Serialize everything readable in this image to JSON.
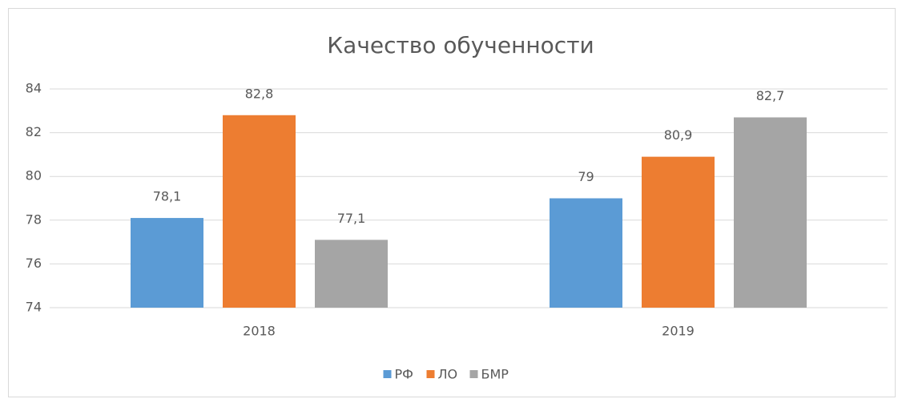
{
  "chart_data": {
    "type": "bar",
    "title": "Качество обученности",
    "categories": [
      "2018",
      "2019"
    ],
    "series": [
      {
        "name": "РФ",
        "color": "#5b9bd5",
        "values": [
          78.1,
          79
        ],
        "value_labels": [
          "78,1",
          "79"
        ]
      },
      {
        "name": "ЛО",
        "color": "#ed7d31",
        "values": [
          82.8,
          80.9
        ],
        "value_labels": [
          "82,8",
          "80,9"
        ]
      },
      {
        "name": "БМР",
        "color": "#a5a5a5",
        "values": [
          77.1,
          82.7
        ],
        "value_labels": [
          "77,1",
          "82,7"
        ]
      }
    ],
    "ylim": [
      74,
      84
    ],
    "yticks": [
      74,
      76,
      78,
      80,
      82,
      84
    ],
    "grid": true,
    "legend": "bottom"
  }
}
